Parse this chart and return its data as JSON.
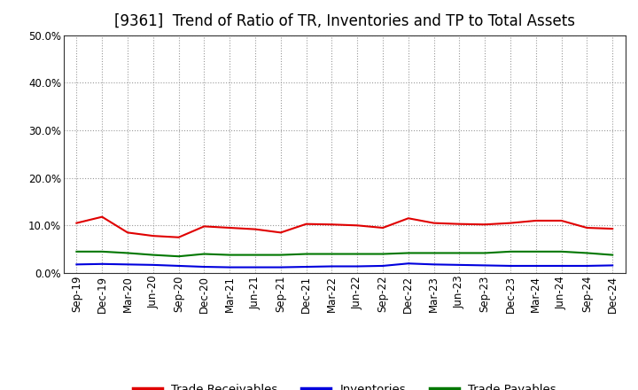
{
  "title": "[9361]  Trend of Ratio of TR, Inventories and TP to Total Assets",
  "x_labels": [
    "Sep-19",
    "Dec-19",
    "Mar-20",
    "Jun-20",
    "Sep-20",
    "Dec-20",
    "Mar-21",
    "Jun-21",
    "Sep-21",
    "Dec-21",
    "Mar-22",
    "Jun-22",
    "Sep-22",
    "Dec-22",
    "Mar-23",
    "Jun-23",
    "Sep-23",
    "Dec-23",
    "Mar-24",
    "Jun-24",
    "Sep-24",
    "Dec-24"
  ],
  "trade_receivables": [
    10.5,
    11.8,
    8.5,
    7.8,
    7.5,
    9.8,
    9.5,
    9.2,
    8.5,
    10.3,
    10.2,
    10.0,
    9.5,
    11.5,
    10.5,
    10.3,
    10.2,
    10.5,
    11.0,
    11.0,
    9.5,
    9.3
  ],
  "inventories": [
    1.8,
    1.9,
    1.8,
    1.7,
    1.5,
    1.3,
    1.2,
    1.2,
    1.2,
    1.3,
    1.4,
    1.4,
    1.5,
    2.0,
    1.8,
    1.7,
    1.6,
    1.5,
    1.5,
    1.5,
    1.5,
    1.6
  ],
  "trade_payables": [
    4.5,
    4.5,
    4.2,
    3.8,
    3.5,
    4.0,
    3.8,
    3.8,
    3.8,
    4.0,
    4.0,
    4.0,
    4.0,
    4.2,
    4.2,
    4.2,
    4.2,
    4.5,
    4.5,
    4.5,
    4.2,
    3.8
  ],
  "tr_color": "#e00000",
  "inv_color": "#0000dd",
  "tp_color": "#007700",
  "ylim": [
    0,
    50
  ],
  "yticks": [
    0,
    10,
    20,
    30,
    40,
    50
  ],
  "ytick_labels": [
    "0.0%",
    "10.0%",
    "20.0%",
    "30.0%",
    "40.0%",
    "50.0%"
  ],
  "background_color": "#ffffff",
  "grid_color": "#999999",
  "legend_labels": [
    "Trade Receivables",
    "Inventories",
    "Trade Payables"
  ],
  "title_fontsize": 12,
  "axis_label_fontsize": 8.5,
  "legend_fontsize": 9.5
}
